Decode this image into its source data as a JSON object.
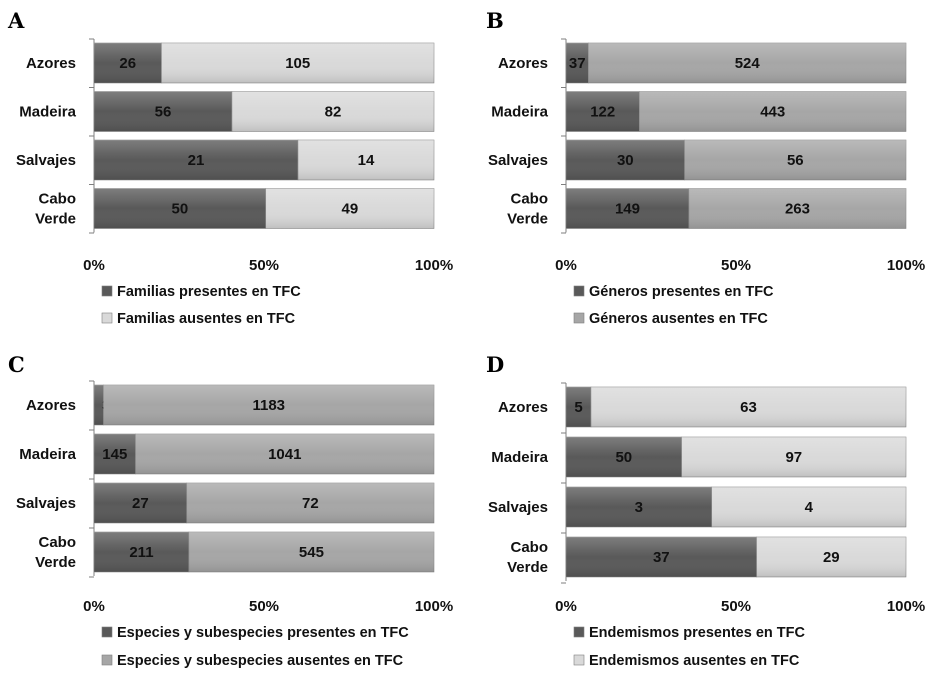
{
  "colors": {
    "present": "#595959",
    "absent_light": "#d9d9d9",
    "absent_mid": "#a6a6a6",
    "axis": "#7f7f7f"
  },
  "chart_data": [
    {
      "type": "bar",
      "stacked": "percent",
      "orientation": "horizontal",
      "panel": "A",
      "categories": [
        "Azores",
        "Madeira",
        "Salvajes",
        [
          "Cabo",
          "Verde"
        ]
      ],
      "series": [
        {
          "name": "Familias presentes en TFC",
          "values": [
            26,
            56,
            21,
            50
          ],
          "color": "#595959"
        },
        {
          "name": "Familias ausentes en TFC",
          "values": [
            105,
            82,
            14,
            49
          ],
          "color": "#d9d9d9"
        }
      ],
      "xticks": [
        "0%",
        "50%",
        "100%"
      ],
      "xlim": [
        0,
        100
      ],
      "grid": false,
      "legend": "bottom"
    },
    {
      "type": "bar",
      "stacked": "percent",
      "orientation": "horizontal",
      "panel": "B",
      "categories": [
        "Azores",
        "Madeira",
        "Salvajes",
        [
          "Cabo",
          "Verde"
        ]
      ],
      "series": [
        {
          "name": "Géneros presentes en TFC",
          "values": [
            37,
            122,
            30,
            149
          ],
          "color": "#595959"
        },
        {
          "name": "Géneros ausentes en TFC",
          "values": [
            524,
            443,
            56,
            263
          ],
          "color": "#a6a6a6"
        }
      ],
      "xticks": [
        "0%",
        "50%",
        "100%"
      ],
      "xlim": [
        0,
        100
      ],
      "grid": false,
      "legend": "bottom"
    },
    {
      "type": "bar",
      "stacked": "percent",
      "orientation": "horizontal",
      "panel": "C",
      "categories": [
        "Azores",
        "Madeira",
        "Salvajes",
        [
          "Cabo",
          "Verde"
        ]
      ],
      "series": [
        {
          "name": "Especies y subespecies presentes en TFC",
          "values": [
            34,
            145,
            27,
            211
          ],
          "color": "#595959"
        },
        {
          "name": "Especies y subespecies ausentes en TFC",
          "values": [
            1183,
            1041,
            72,
            545
          ],
          "color": "#a6a6a6"
        }
      ],
      "xticks": [
        "0%",
        "50%",
        "100%"
      ],
      "xlim": [
        0,
        100
      ],
      "grid": false,
      "legend": "bottom"
    },
    {
      "type": "bar",
      "stacked": "percent",
      "orientation": "horizontal",
      "panel": "D",
      "categories": [
        "Azores",
        "Madeira",
        "Salvajes",
        [
          "Cabo",
          "Verde"
        ]
      ],
      "series": [
        {
          "name": "Endemismos presentes en TFC",
          "values": [
            5,
            50,
            3,
            37
          ],
          "color": "#595959"
        },
        {
          "name": "Endemismos ausentes en TFC",
          "values": [
            63,
            97,
            4,
            29
          ],
          "color": "#d9d9d9"
        }
      ],
      "xticks": [
        "0%",
        "50%",
        "100%"
      ],
      "xlim": [
        0,
        100
      ],
      "grid": false,
      "legend": "bottom"
    }
  ]
}
